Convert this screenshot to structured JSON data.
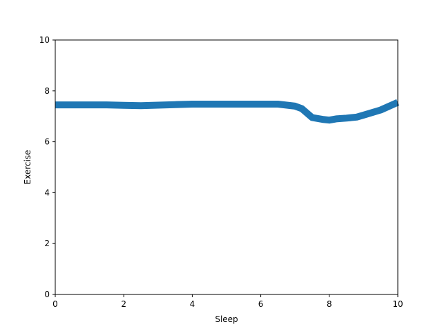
{
  "chart_data": {
    "type": "line",
    "title": "",
    "xlabel": "Sleep",
    "ylabel": "Exercise",
    "xlim": [
      0,
      10
    ],
    "ylim": [
      0,
      10
    ],
    "xticks": [
      0,
      2,
      4,
      6,
      8,
      10
    ],
    "yticks": [
      0,
      2,
      4,
      6,
      8,
      10
    ],
    "grid": false,
    "legend": "none",
    "line_color": "#1f77b4",
    "series": [
      {
        "x": [
          0,
          0.5,
          1.0,
          1.5,
          2.0,
          2.5,
          3.0,
          3.5,
          4.0,
          4.5,
          5.0,
          5.5,
          6.0,
          6.5,
          7.0,
          7.2,
          7.5,
          7.8,
          8.0,
          8.2,
          8.5,
          8.8,
          9.0,
          9.5,
          10.0
        ],
        "y": [
          7.45,
          7.45,
          7.45,
          7.45,
          7.43,
          7.42,
          7.44,
          7.46,
          7.48,
          7.48,
          7.48,
          7.48,
          7.48,
          7.48,
          7.4,
          7.3,
          6.95,
          6.88,
          6.85,
          6.9,
          6.93,
          6.97,
          7.05,
          7.25,
          7.55
        ]
      }
    ]
  }
}
